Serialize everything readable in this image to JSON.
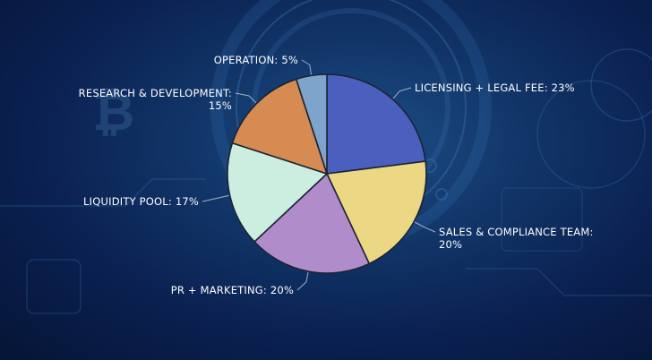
{
  "chart_data": {
    "type": "pie",
    "title": "",
    "slices": [
      {
        "label": "LICENSING + LEGAL FEE",
        "value": 23,
        "color": "#4b5fbf",
        "text_lines": [
          "LICENSING + LEGAL FEE: 23%"
        ]
      },
      {
        "label": "SALES & COMPLIANCE TEAM",
        "value": 20,
        "color": "#ebd784",
        "text_lines": [
          "SALES & COMPLIANCE TEAM:",
          "20%"
        ]
      },
      {
        "label": "PR + MARKETING",
        "value": 20,
        "color": "#b08ccb",
        "text_lines": [
          "PR + MARKETING: 20%"
        ]
      },
      {
        "label": "LIQUIDITY POOL",
        "value": 17,
        "color": "#cbeee0",
        "text_lines": [
          "LIQUIDITY POOL: 17%"
        ]
      },
      {
        "label": "RESEARCH & DEVELOPMENT",
        "value": 15,
        "color": "#d58b52",
        "text_lines": [
          "RESEARCH & DEVELOPMENT:",
          "15%"
        ]
      },
      {
        "label": "OPERATION",
        "value": 5,
        "color": "#7ea4cb",
        "text_lines": [
          "OPERATION: 5%"
        ]
      }
    ],
    "start": "12 o'clock",
    "direction": "clockwise",
    "legend": "none"
  }
}
